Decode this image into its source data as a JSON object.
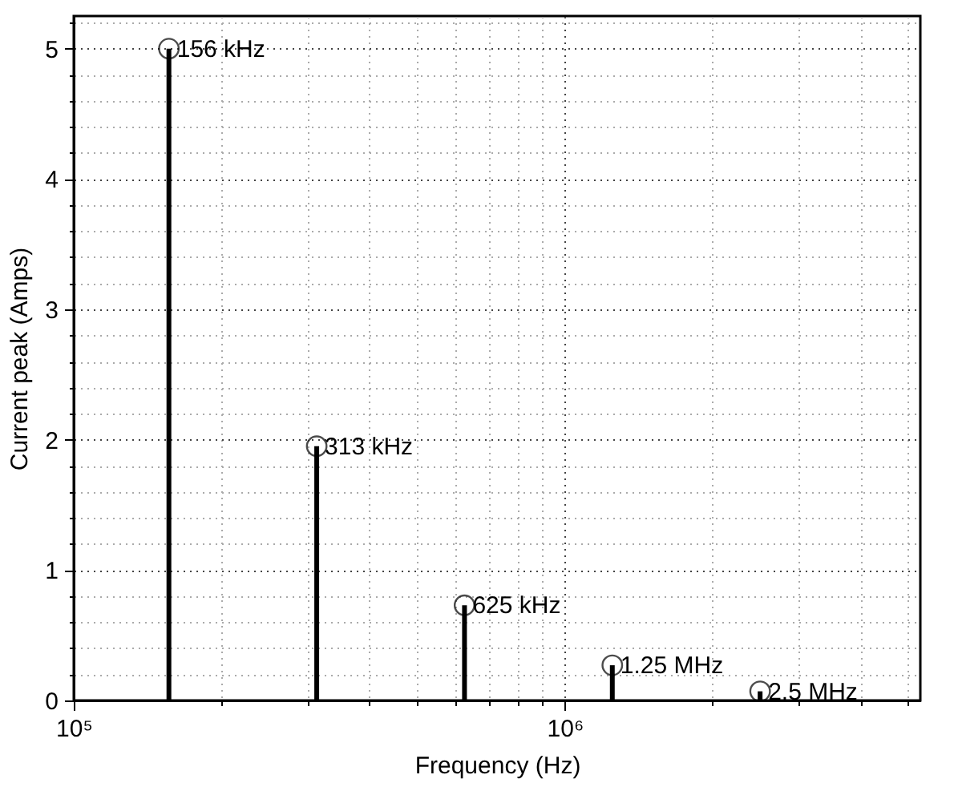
{
  "chart_data": {
    "type": "lollipop",
    "xlabel": "Frequency (Hz)",
    "ylabel": "Current peak (Amps)",
    "x": [
      156250,
      312500,
      625000,
      1250000,
      2500000
    ],
    "values": [
      5.0,
      1.95,
      0.73,
      0.27,
      0.07
    ],
    "color": "#000000",
    "marker": "circle",
    "log": "x",
    "grid": true,
    "xlim": [
      100000,
      5300000
    ],
    "ylim": [
      0,
      5.25
    ],
    "xticks": [
      {
        "value": 100000,
        "label": "10⁵"
      },
      {
        "value": 200000,
        "label": null
      },
      {
        "value": 300000,
        "label": null
      },
      {
        "value": 400000,
        "label": null
      },
      {
        "value": 500000,
        "label": null
      },
      {
        "value": 600000,
        "label": null
      },
      {
        "value": 700000,
        "label": null
      },
      {
        "value": 800000,
        "label": null
      },
      {
        "value": 900000,
        "label": null
      },
      {
        "value": 1000000,
        "label": "10⁶"
      },
      {
        "value": 2000000,
        "label": null
      },
      {
        "value": 3000000,
        "label": null
      },
      {
        "value": 4000000,
        "label": null
      },
      {
        "value": 5000000,
        "label": null
      }
    ],
    "yticks": [
      0,
      {
        "value": 0.2,
        "label": null
      },
      {
        "value": 0.4,
        "label": null
      },
      {
        "value": 0.6,
        "label": null
      },
      {
        "value": 0.8,
        "label": null
      },
      1,
      {
        "value": 1.2,
        "label": null
      },
      {
        "value": 1.4,
        "label": null
      },
      {
        "value": 1.6,
        "label": null
      },
      {
        "value": 1.8,
        "label": null
      },
      2,
      {
        "value": 2.2,
        "label": null
      },
      {
        "value": 2.4,
        "label": null
      },
      {
        "value": 2.6,
        "label": null
      },
      {
        "value": 2.8,
        "label": null
      },
      3,
      {
        "value": 3.2,
        "label": null
      },
      {
        "value": 3.4,
        "label": null
      },
      {
        "value": 3.6,
        "label": null
      },
      {
        "value": 3.8,
        "label": null
      },
      4,
      {
        "value": 4.2,
        "label": null
      },
      {
        "value": 4.4,
        "label": null
      },
      {
        "value": 4.6,
        "label": null
      },
      {
        "value": 4.8,
        "label": null
      },
      5,
      {
        "value": 5.2,
        "label": null
      }
    ],
    "annotations": [
      {
        "text": "156 kHz",
        "x": 156250,
        "y": 5.0
      },
      {
        "text": "313 kHz",
        "x": 312500,
        "y": 1.95
      },
      {
        "text": "625 kHz",
        "x": 625000,
        "y": 0.73
      },
      {
        "text": "1.25 MHz",
        "x": 1250000,
        "y": 0.27
      },
      {
        "text": "2.5 MHz",
        "x": 2500000,
        "y": 0.07
      }
    ]
  }
}
